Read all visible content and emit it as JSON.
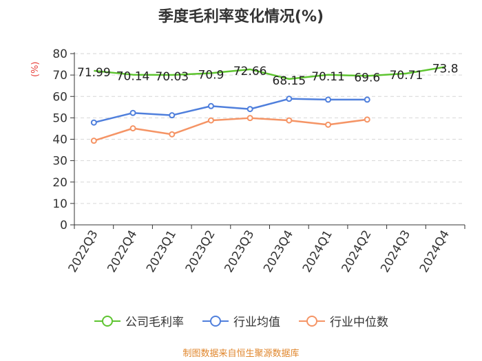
{
  "chart_data": {
    "type": "line",
    "title": "季度毛利率变化情况(%)",
    "ylabel": "(%)",
    "xlabel": "",
    "ylim": [
      0,
      80
    ],
    "yticks": [
      0,
      10,
      20,
      30,
      40,
      50,
      60,
      70,
      80
    ],
    "categories": [
      "2022Q3",
      "2022Q4",
      "2023Q1",
      "2023Q2",
      "2023Q3",
      "2023Q4",
      "2024Q1",
      "2024Q2",
      "2024Q3",
      "2024Q4"
    ],
    "grid": true,
    "legend_position": "bottom",
    "series": [
      {
        "name": "公司毛利率",
        "color": "#5dc42f",
        "show_labels": true,
        "show_markers": false,
        "values": [
          71.99,
          70.14,
          70.03,
          70.9,
          72.66,
          68.15,
          70.11,
          69.6,
          70.71,
          73.8
        ]
      },
      {
        "name": "行业均值",
        "color": "#4f7fdc",
        "show_labels": false,
        "show_markers": true,
        "values": [
          47.8,
          52.3,
          51.2,
          55.5,
          54.1,
          58.9,
          58.5,
          58.5,
          null,
          null
        ]
      },
      {
        "name": "行业中位数",
        "color": "#f59465",
        "show_labels": false,
        "show_markers": true,
        "values": [
          39.3,
          45.1,
          42.3,
          48.8,
          49.9,
          48.8,
          46.8,
          49.2,
          null,
          null
        ]
      }
    ]
  },
  "source_text": "制图数据来自恒生聚源数据库"
}
